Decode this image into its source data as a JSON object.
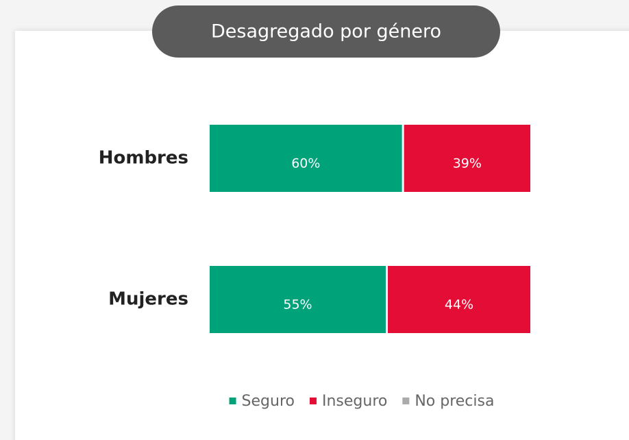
{
  "chart_data": {
    "type": "stacked-bar-horizontal",
    "title": "Desagregado por género",
    "categories": [
      "Hombres",
      "Mujeres"
    ],
    "series": [
      {
        "name": "Seguro",
        "color": "#00a27a",
        "values": [
          60,
          55
        ],
        "value_labels": [
          "60%",
          "55%"
        ]
      },
      {
        "name": "Inseguro",
        "color": "#e40d35",
        "values": [
          39,
          44
        ],
        "value_labels": [
          "39%",
          "44%"
        ]
      },
      {
        "name": "No precisa",
        "color": "#ababab",
        "values": [
          0,
          0
        ]
      }
    ],
    "xlim": [
      0,
      99
    ]
  }
}
